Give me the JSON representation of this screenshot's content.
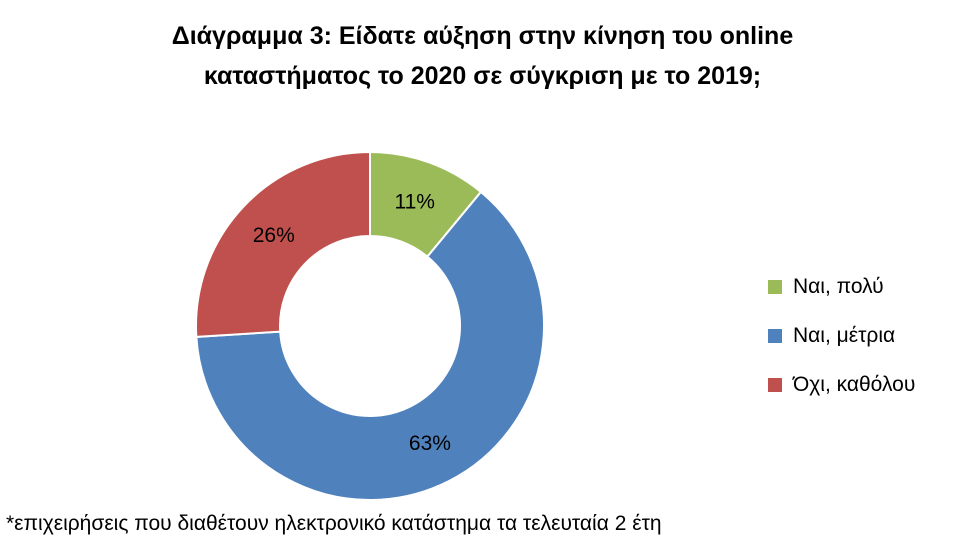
{
  "chart_data": {
    "type": "pie",
    "variant": "donut",
    "title_lines": [
      "Διάγραμμα 3: Είδατε αύξηση στην κίνηση του online",
      "καταστήματος το 2020 σε σύγκριση με το 2019;"
    ],
    "categories": [
      "Ναι, πολύ",
      "Ναι, μέτρια",
      "Όχι, καθόλου"
    ],
    "values": [
      11,
      63,
      26
    ],
    "labels": [
      "11%",
      "63%",
      "26%"
    ],
    "colors": [
      "#9BBB59",
      "#4F81BD",
      "#C0504D"
    ],
    "legend_position": "right",
    "footnote": "*επιχειρήσεις που διαθέτουν ηλεκτρονικό κατάστημα τα τελευταία 2 έτη"
  }
}
